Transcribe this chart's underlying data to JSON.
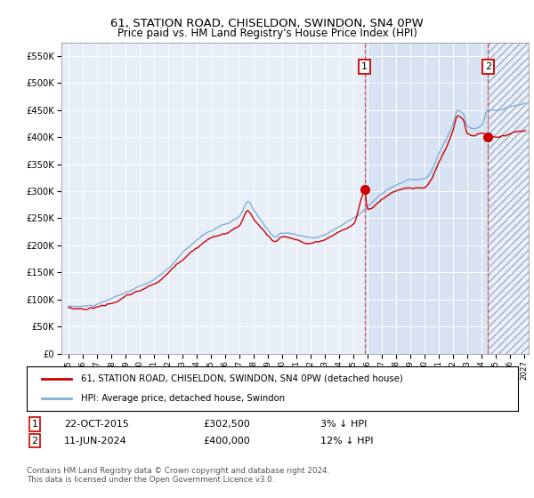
{
  "title": "61, STATION ROAD, CHISELDON, SWINDON, SN4 0PW",
  "subtitle": "Price paid vs. HM Land Registry's House Price Index (HPI)",
  "ylabel_ticks": [
    "£0",
    "£50K",
    "£100K",
    "£150K",
    "£200K",
    "£250K",
    "£300K",
    "£350K",
    "£400K",
    "£450K",
    "£500K",
    "£550K"
  ],
  "ytick_vals": [
    0,
    50000,
    100000,
    150000,
    200000,
    250000,
    300000,
    350000,
    400000,
    450000,
    500000,
    550000
  ],
  "ylim": [
    0,
    575000
  ],
  "legend_line1": "61, STATION ROAD, CHISELDON, SWINDON, SN4 0PW (detached house)",
  "legend_line2": "HPI: Average price, detached house, Swindon",
  "line1_color": "#cc0000",
  "line2_color": "#7fb0d8",
  "annotation1_date": "22-OCT-2015",
  "annotation1_price": "£302,500",
  "annotation1_hpi": "3% ↓ HPI",
  "annotation2_date": "11-JUN-2024",
  "annotation2_price": "£400,000",
  "annotation2_hpi": "12% ↓ HPI",
  "footnote": "Contains HM Land Registry data © Crown copyright and database right 2024.\nThis data is licensed under the Open Government Licence v3.0.",
  "marker1_x": 2015.79,
  "marker1_y": 302500,
  "marker2_x": 2024.44,
  "marker2_y": 400000,
  "vline1_x": 2015.79,
  "vline2_x": 2024.44,
  "shade_start": 2015.79,
  "shade_end": 2024.44,
  "hatch_start": 2024.44,
  "hatch_end": 2027.3,
  "xlim_left": 1994.5,
  "xlim_right": 2027.3,
  "background_color": "#ffffff",
  "plot_bg_color": "#e8eef8",
  "shade_color": "#d0ddf0",
  "hatch_color": "#c0ccdf"
}
